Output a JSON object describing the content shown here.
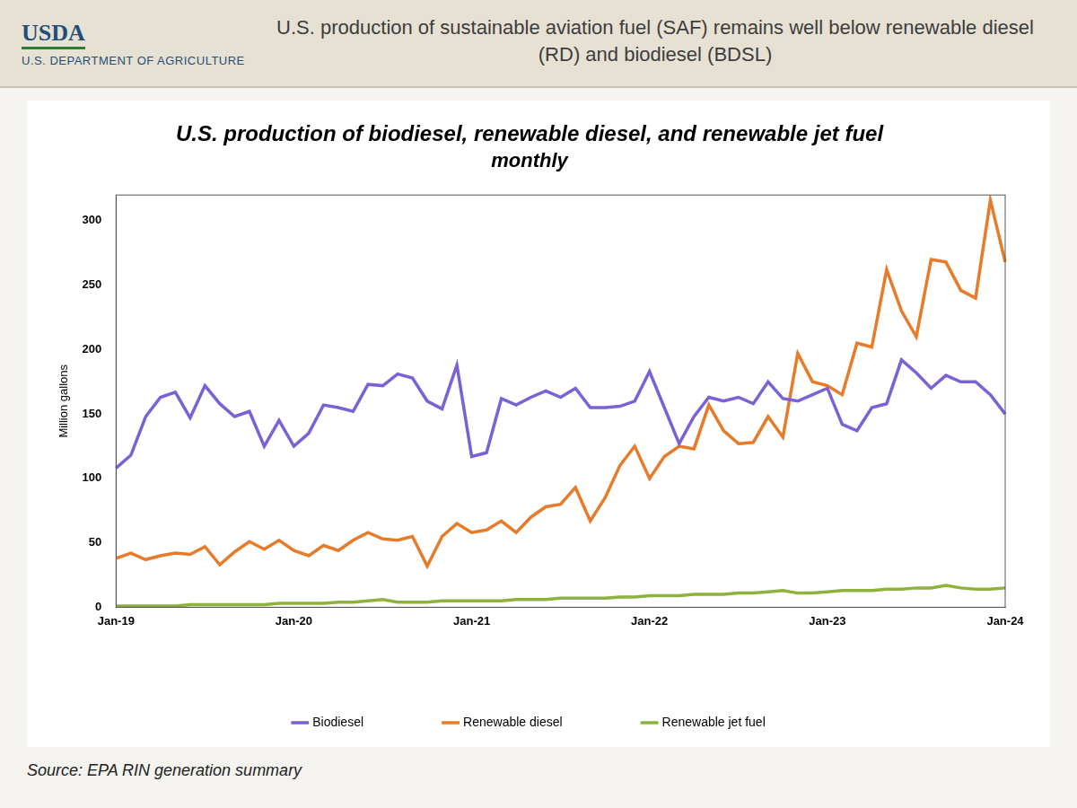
{
  "header": {
    "logo": "USDA",
    "agency": "U.S. DEPARTMENT OF AGRICULTURE",
    "title": "U.S. production of sustainable aviation fuel (SAF) remains well below renewable diesel (RD) and biodiesel (BDSL)"
  },
  "chart_data": {
    "type": "line",
    "title": "U.S. production of biodiesel, renewable diesel, and renewable jet fuel",
    "subtitle": "monthly",
    "y_label": "Million gallons",
    "categories": [
      "Jan-19",
      null,
      null,
      null,
      null,
      null,
      null,
      null,
      null,
      null,
      null,
      null,
      "Jan-20",
      null,
      null,
      null,
      null,
      null,
      null,
      null,
      null,
      null,
      null,
      null,
      "Jan-21",
      null,
      null,
      null,
      null,
      null,
      null,
      null,
      null,
      null,
      null,
      null,
      "Jan-22",
      null,
      null,
      null,
      null,
      null,
      null,
      null,
      null,
      null,
      null,
      null,
      "Jan-23",
      null,
      null,
      null,
      null,
      null,
      null,
      null,
      null,
      null,
      null,
      null,
      "Jan-24"
    ],
    "series": [
      {
        "name": "Biodiesel",
        "color": "#7b61d6",
        "values": [
          108,
          118,
          148,
          163,
          167,
          147,
          172,
          158,
          148,
          152,
          125,
          145,
          125,
          135,
          157,
          155,
          152,
          173,
          172,
          181,
          178,
          160,
          154,
          188,
          117,
          120,
          162,
          157,
          163,
          168,
          163,
          170,
          155,
          155,
          156,
          160,
          183,
          155,
          127,
          148,
          163,
          160,
          163,
          158,
          175,
          162,
          160,
          165,
          170,
          142,
          137,
          155,
          158,
          192,
          182,
          170,
          180,
          175,
          175,
          165,
          150
        ]
      },
      {
        "name": "Renewable diesel",
        "color": "#e87b2a",
        "values": [
          38,
          42,
          37,
          40,
          42,
          41,
          47,
          33,
          43,
          51,
          45,
          52,
          44,
          40,
          48,
          44,
          52,
          58,
          53,
          52,
          55,
          32,
          55,
          65,
          58,
          60,
          67,
          58,
          70,
          78,
          80,
          93,
          67,
          85,
          110,
          125,
          100,
          117,
          125,
          123,
          157,
          137,
          127,
          128,
          148,
          132,
          197,
          175,
          172,
          165,
          205,
          202,
          262,
          230,
          210,
          270,
          268,
          246,
          240,
          316,
          268
        ]
      },
      {
        "name": "Renewable jet fuel",
        "color": "#8db33c",
        "values": [
          1,
          1,
          1,
          1,
          1,
          2,
          2,
          2,
          2,
          2,
          2,
          3,
          3,
          3,
          3,
          4,
          4,
          5,
          6,
          4,
          4,
          4,
          5,
          5,
          5,
          5,
          5,
          6,
          6,
          6,
          7,
          7,
          7,
          7,
          8,
          8,
          9,
          9,
          9,
          10,
          10,
          10,
          11,
          11,
          12,
          13,
          11,
          11,
          12,
          13,
          13,
          13,
          14,
          14,
          15,
          15,
          17,
          15,
          14,
          14,
          15
        ]
      }
    ],
    "ylim": [
      0,
      320
    ],
    "yticks": [
      0,
      50,
      100,
      150,
      200,
      250,
      300
    ],
    "grid": false,
    "legend": "bottom"
  },
  "source": "Source: EPA RIN generation summary"
}
